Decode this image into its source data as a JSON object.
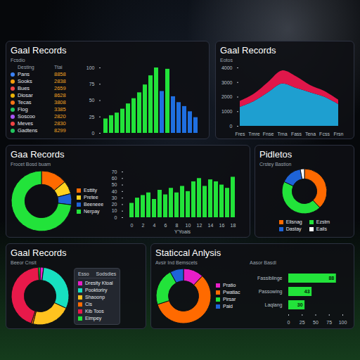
{
  "chart_data": [
    {
      "type": "table",
      "title": "Gaal Records",
      "subtitle": "Fcsdio",
      "header": [
        "Desting",
        "Ttai"
      ],
      "rows": [
        [
          "Pans",
          "8858"
        ],
        [
          "Sooks",
          "2838"
        ],
        [
          "Bues",
          "2659"
        ],
        [
          "Diosar",
          "8628"
        ],
        [
          "Tecas",
          "3808"
        ],
        [
          "Flog",
          "3385"
        ],
        [
          "Soscoo",
          "2820"
        ],
        [
          "Meves",
          "2830"
        ],
        [
          "Gadtens",
          "8299"
        ]
      ],
      "colors": [
        "#3b82f6",
        "#f59e0b",
        "#ef4444",
        "#eab308",
        "#f97316",
        "#22c55e",
        "#a855f7",
        "#ef4444",
        "#22c55e"
      ]
    },
    {
      "type": "bar",
      "values": [
        22,
        27,
        31,
        37,
        45,
        53,
        62,
        74,
        88,
        100,
        64,
        98,
        56,
        47,
        41,
        33,
        24
      ],
      "colors": [
        "#22e33a",
        "#22e33a",
        "#22e33a",
        "#22e33a",
        "#22e33a",
        "#22e33a",
        "#22e33a",
        "#22e33a",
        "#22e33a",
        "#22e33a",
        "#1f6fe0",
        "#22e33a",
        "#1f6fe0",
        "#1f6fe0",
        "#1f6fe0",
        "#1f6fe0",
        "#1f6fe0"
      ],
      "ylim": [
        0,
        100
      ],
      "yticks": [
        0,
        25,
        50,
        75,
        100
      ],
      "tick_labels": "y"
    },
    {
      "type": "area",
      "title": "Gaal Records",
      "subtitle": "Eotos",
      "categories": [
        "Fres",
        "Tmre",
        "Fnse",
        "Trna",
        "Fass",
        "Tena",
        "Fcss",
        "Frsn"
      ],
      "series": [
        {
          "color": "#1e9fd0",
          "values": [
            1300,
            1700,
            2300,
            2900,
            2600,
            2300,
            2000,
            1500
          ]
        },
        {
          "color": "#e0174a",
          "values": [
            400,
            500,
            700,
            900,
            800,
            500,
            400,
            300
          ]
        }
      ],
      "stacked": true,
      "ylim": [
        0,
        4000
      ],
      "yticks": [
        0,
        1000,
        2000,
        3000,
        4000
      ]
    },
    {
      "type": "pie",
      "title": "Gaa Records",
      "subtitle": "Frocet Bosd buam",
      "categories": [
        "Esttity",
        "Pretee",
        "Beeneee",
        "Nerpay"
      ],
      "values": [
        14,
        7,
        6,
        73
      ],
      "colors": [
        "#ff6a00",
        "#ffd21f",
        "#1e63d8",
        "#22e33a"
      ],
      "legend": "right"
    },
    {
      "type": "bar",
      "xlabel": "Y'Yoais",
      "categories": [
        "0",
        null,
        "2",
        null,
        "4",
        null,
        "6",
        null,
        "8",
        null,
        "10",
        null,
        "12",
        null,
        "14",
        null,
        "16",
        null,
        "18"
      ],
      "values": [
        22,
        30,
        34,
        38,
        28,
        42,
        35,
        45,
        38,
        48,
        40,
        55,
        60,
        48,
        58,
        55,
        50,
        45,
        62
      ],
      "color": "#22e33a",
      "ylim": [
        0,
        70
      ],
      "yticks": [
        0,
        10,
        20,
        30,
        40,
        50,
        60,
        70
      ]
    },
    {
      "type": "pie",
      "title": "Pidletos",
      "subtitle": "Crstey Bastion",
      "categories": [
        "Elisnag",
        "Ezstm",
        "Dastay",
        "Eails"
      ],
      "values": [
        38,
        44,
        15,
        3
      ],
      "colors": [
        "#ff6a00",
        "#22e33a",
        "#1e63d8",
        "#ffffff"
      ],
      "legend": "bottom"
    },
    {
      "type": "pie",
      "title": "Gaal Records",
      "subtitle": "Beeor Cnsit",
      "legend_header": [
        "Esso",
        "Sodsdies"
      ],
      "categories": [
        "Dresity Ktoal",
        "Pooktoriry",
        "Shaoonp",
        "Cis",
        "Kib Toos",
        "Eimpey"
      ],
      "values": [
        2,
        30,
        22,
        1,
        44,
        1
      ],
      "colors": [
        "#e81ec8",
        "#17e0c0",
        "#ffc21f",
        "#ff6a00",
        "#e8194a",
        "#22e33a"
      ],
      "legend": "right"
    },
    {
      "type": "pie",
      "title": "Staticcal Anlysis",
      "subtitle": "Avsir Ind Bemscets",
      "categories": [
        "Pratio",
        "Pwatiac",
        "Pirsar",
        "Paid"
      ],
      "values": [
        12,
        58,
        22,
        8
      ],
      "colors": [
        "#e81ec8",
        "#ff6a00",
        "#22e33a",
        "#1e63d8"
      ],
      "legend": "right"
    },
    {
      "type": "bar",
      "orientation": "horizontal",
      "subtitle": "Aasor Basdl",
      "categories": [
        "Fassiblinge",
        "Passowing",
        "Laqlang"
      ],
      "values": [
        88,
        43,
        30
      ],
      "color": "#22e33a",
      "data_labels": true,
      "xlim": [
        0,
        100
      ],
      "xticks": [
        0,
        25,
        50,
        75,
        100
      ]
    }
  ]
}
